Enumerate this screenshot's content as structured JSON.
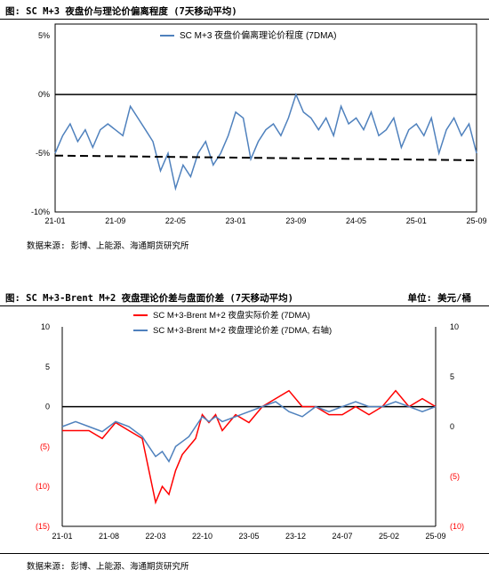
{
  "figure1": {
    "title": "图: SC M+3 夜盘价与理论价偏离程度 (7天移动平均)",
    "source": "数据来源: 彭博、上能源、海通期货研究所"
  },
  "figure2": {
    "title": "图: SC M+3-Brent M+2 夜盘理论价差与盘面价差 (7天移动平均)",
    "unit": "单位: 美元/桶",
    "source": "数据来源: 彭博、上能源、海通期货研究所"
  },
  "chart_data": [
    {
      "type": "line",
      "title": "",
      "legend": "top-center",
      "x_range": [
        "2021-01",
        "2025-09"
      ],
      "x_ticks": [
        "21-01",
        "21-09",
        "22-05",
        "23-01",
        "23-09",
        "24-05",
        "25-01",
        "25-09"
      ],
      "y_ticks": [
        "5%",
        "0%",
        "-5%",
        "-10%"
      ],
      "ylim": [
        -10,
        6
      ],
      "color": "#4f81bd",
      "series": [
        {
          "name": "SC M+3 夜盘价偏离理论价程度 (7DMA)",
          "x": [
            "2021-01",
            "2021-02",
            "2021-03",
            "2021-04",
            "2021-05",
            "2021-06",
            "2021-07",
            "2021-08",
            "2021-09",
            "2021-10",
            "2021-11",
            "2021-12",
            "2022-01",
            "2022-02",
            "2022-03",
            "2022-04",
            "2022-05",
            "2022-06",
            "2022-07",
            "2022-08",
            "2022-09",
            "2022-10",
            "2022-11",
            "2022-12",
            "2023-01",
            "2023-02",
            "2023-03",
            "2023-04",
            "2023-05",
            "2023-06",
            "2023-07",
            "2023-08",
            "2023-09",
            "2023-10",
            "2023-11",
            "2023-12",
            "2024-01",
            "2024-02",
            "2024-03",
            "2024-04",
            "2024-05",
            "2024-06",
            "2024-07",
            "2024-08",
            "2024-09",
            "2024-10",
            "2024-11",
            "2024-12",
            "2025-01",
            "2025-02",
            "2025-03",
            "2025-04",
            "2025-05",
            "2025-06",
            "2025-07",
            "2025-08",
            "2025-09"
          ],
          "values": [
            -5.0,
            -3.5,
            -2.5,
            -4.0,
            -3.0,
            -4.5,
            -3.0,
            -2.5,
            -3.0,
            -3.5,
            -1.0,
            -2.0,
            -3.0,
            -4.0,
            -6.5,
            -5.0,
            -8.0,
            -6.0,
            -7.0,
            -5.0,
            -4.0,
            -6.0,
            -5.0,
            -3.5,
            -1.5,
            -2.0,
            -5.5,
            -4.0,
            -3.0,
            -2.5,
            -3.5,
            -2.0,
            0.0,
            -1.5,
            -2.0,
            -3.0,
            -2.0,
            -3.5,
            -1.0,
            -2.5,
            -2.0,
            -3.0,
            -1.5,
            -3.5,
            -3.0,
            -2.0,
            -4.5,
            -3.0,
            -2.5,
            -3.5,
            -2.0,
            -5.0,
            -3.0,
            -2.0,
            -3.5,
            -2.5,
            -5.0
          ]
        },
        {
          "name": "",
          "style": "dashed",
          "x": [
            "2021-01",
            "2025-09"
          ],
          "values": [
            -5.2,
            -5.6
          ]
        }
      ]
    },
    {
      "type": "line",
      "title": "",
      "legend": "top-center",
      "x_range": [
        "2021-01",
        "2025-09"
      ],
      "x_ticks": [
        "21-01",
        "21-08",
        "22-03",
        "22-10",
        "23-05",
        "23-12",
        "24-07",
        "25-02",
        "25-09"
      ],
      "y_left_ticks": [
        "10",
        "5",
        "0",
        "(5)",
        "(10)",
        "(15)"
      ],
      "y_right_ticks": [
        "10",
        "5",
        "0",
        "(5)",
        "(10)"
      ],
      "ylim_left": [
        -15,
        10
      ],
      "ylim_right": [
        -10,
        10
      ],
      "series": [
        {
          "name": "SC M+3-Brent M+2 夜盘实际价差 (7DMA)",
          "color": "#ff0000",
          "axis": "left",
          "x": [
            "2021-01",
            "2021-03",
            "2021-05",
            "2021-07",
            "2021-09",
            "2021-11",
            "2022-01",
            "2022-02",
            "2022-03",
            "2022-04",
            "2022-05",
            "2022-06",
            "2022-07",
            "2022-08",
            "2022-09",
            "2022-10",
            "2022-11",
            "2022-12",
            "2023-01",
            "2023-03",
            "2023-05",
            "2023-07",
            "2023-09",
            "2023-11",
            "2024-01",
            "2024-03",
            "2024-05",
            "2024-07",
            "2024-09",
            "2024-11",
            "2025-01",
            "2025-03",
            "2025-05",
            "2025-07",
            "2025-09"
          ],
          "values": [
            -3,
            -3,
            -3,
            -4,
            -2,
            -3,
            -4,
            -8,
            -12,
            -10,
            -11,
            -8,
            -6,
            -5,
            -4,
            -1,
            -2,
            -1,
            -3,
            -1,
            -2,
            0,
            1,
            2,
            0,
            0,
            -1,
            -1,
            0,
            -1,
            0,
            2,
            0,
            1,
            0
          ]
        },
        {
          "name": "SC M+3-Brent M+2 夜盘理论价差 (7DMA, 右轴)",
          "color": "#4f81bd",
          "axis": "right",
          "x": [
            "2021-01",
            "2021-03",
            "2021-05",
            "2021-07",
            "2021-09",
            "2021-11",
            "2022-01",
            "2022-02",
            "2022-03",
            "2022-04",
            "2022-05",
            "2022-06",
            "2022-07",
            "2022-08",
            "2022-09",
            "2022-10",
            "2022-11",
            "2022-12",
            "2023-01",
            "2023-03",
            "2023-05",
            "2023-07",
            "2023-09",
            "2023-11",
            "2024-01",
            "2024-03",
            "2024-05",
            "2024-07",
            "2024-09",
            "2024-11",
            "2025-01",
            "2025-03",
            "2025-05",
            "2025-07",
            "2025-09"
          ],
          "values": [
            0,
            0.5,
            0,
            -0.5,
            0.5,
            0,
            -1,
            -2,
            -3,
            -2.5,
            -3.5,
            -2,
            -1.5,
            -1,
            0,
            1,
            0.5,
            1,
            0.5,
            1,
            1.5,
            2,
            2.5,
            1.5,
            1,
            2,
            1.5,
            2,
            2.5,
            2,
            2,
            2.5,
            2,
            1.5,
            2
          ]
        }
      ]
    }
  ]
}
